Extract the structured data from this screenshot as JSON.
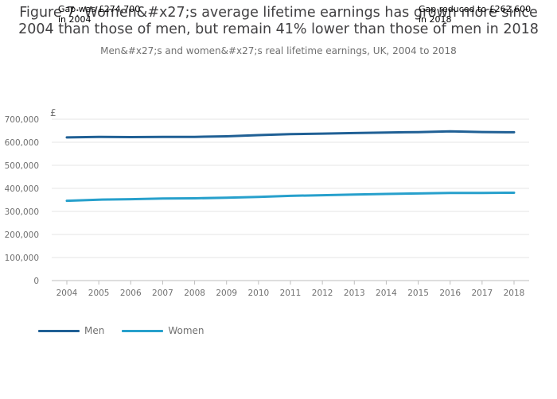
{
  "title_lines": [
    "Figure 7: Women&#x27;s average lifetime earnings has grown more since",
    "2004 than those of men, but remain 41% lower than those of men in 2018"
  ],
  "annotations": {
    "left": [
      "Gap was £274,700",
      "in 2004"
    ],
    "right": [
      "Gap reduced to £262,600",
      "in 2018"
    ]
  },
  "chart_data": {
    "type": "line",
    "title": "Figure 7: Women&#x27;s average lifetime earnings has grown more since 2004 than those of men, but remain 41% lower than those of men in 2018",
    "subtitle": "Men&#x27;s and women&#x27;s real lifetime earnings, UK, 2004 to 2018",
    "ylabel": "£",
    "xlabel": "",
    "ylim": [
      0,
      700000
    ],
    "yticks": [
      0,
      100000,
      200000,
      300000,
      400000,
      500000,
      600000,
      700000
    ],
    "ytick_labels": [
      "0",
      "100,000",
      "200,000",
      "300,000",
      "400,000",
      "500,000",
      "600,000",
      "700,000"
    ],
    "x": [
      "2004",
      "2005",
      "2006",
      "2007",
      "2008",
      "2009",
      "2010",
      "2011",
      "2012",
      "2013",
      "2014",
      "2015",
      "2016",
      "2017",
      "2018"
    ],
    "grid": true,
    "legend_position": "bottom-left",
    "series": [
      {
        "name": "Men",
        "color": "#206095",
        "values": [
          621000,
          623500,
          622500,
          623000,
          623500,
          626000,
          631000,
          635500,
          637500,
          640000,
          642500,
          644000,
          647500,
          644500,
          643500
        ]
      },
      {
        "name": "Women",
        "color": "#27a0cc",
        "values": [
          346300,
          351000,
          353000,
          356000,
          357000,
          359500,
          363000,
          367500,
          370500,
          373500,
          376000,
          378000,
          380500,
          380500,
          380900
        ]
      }
    ]
  }
}
